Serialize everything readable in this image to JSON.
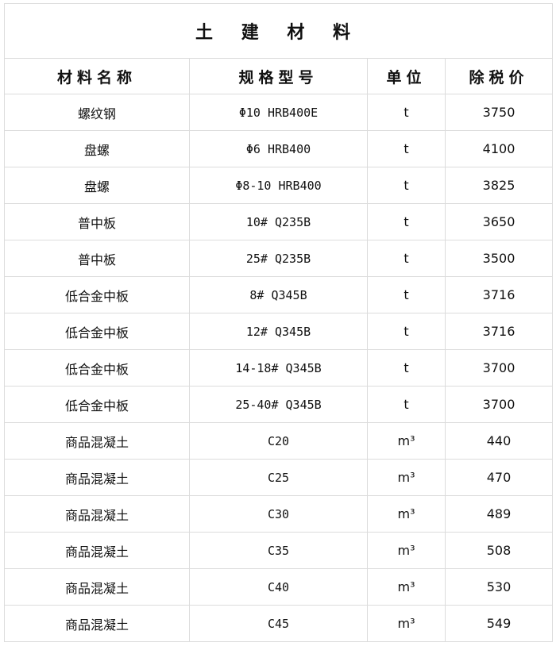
{
  "title": "土 建 材 料",
  "headers": [
    "材料名称",
    "规格型号",
    "单位",
    "除税价"
  ],
  "rows": [
    {
      "name": "螺纹钢",
      "spec": "Φ10 HRB400E",
      "unit": "t",
      "price": "3750"
    },
    {
      "name": "盘螺",
      "spec": "Φ6 HRB400",
      "unit": "t",
      "price": "4100"
    },
    {
      "name": "盘螺",
      "spec": "Φ8-10 HRB400",
      "unit": "t",
      "price": "3825"
    },
    {
      "name": "普中板",
      "spec": "10# Q235B",
      "unit": "t",
      "price": "3650"
    },
    {
      "name": "普中板",
      "spec": "25# Q235B",
      "unit": "t",
      "price": "3500"
    },
    {
      "name": "低合金中板",
      "spec": "8# Q345B",
      "unit": "t",
      "price": "3716"
    },
    {
      "name": "低合金中板",
      "spec": "12# Q345B",
      "unit": "t",
      "price": "3716"
    },
    {
      "name": "低合金中板",
      "spec": "14-18# Q345B",
      "unit": "t",
      "price": "3700"
    },
    {
      "name": "低合金中板",
      "spec": "25-40# Q345B",
      "unit": "t",
      "price": "3700"
    },
    {
      "name": "商品混凝土",
      "spec": "C20",
      "unit": "m³",
      "price": "440"
    },
    {
      "name": "商品混凝土",
      "spec": "C25",
      "unit": "m³",
      "price": "470"
    },
    {
      "name": "商品混凝土",
      "spec": "C30",
      "unit": "m³",
      "price": "489"
    },
    {
      "name": "商品混凝土",
      "spec": "C35",
      "unit": "m³",
      "price": "508"
    },
    {
      "name": "商品混凝土",
      "spec": "C40",
      "unit": "m³",
      "price": "530"
    },
    {
      "name": "商品混凝土",
      "spec": "C45",
      "unit": "m³",
      "price": "549"
    }
  ]
}
